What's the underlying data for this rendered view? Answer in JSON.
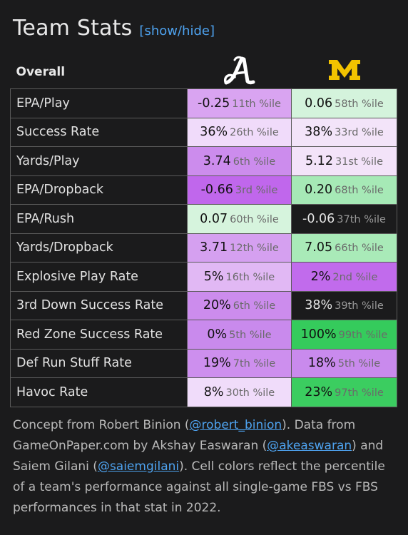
{
  "header": {
    "title": "Team Stats",
    "toggle_label": "[show/hide]"
  },
  "table": {
    "section_label": "Overall",
    "teams": [
      {
        "name": "Alabama",
        "logo_icon": "alabama-script-a-icon",
        "logo_color": "#ffffff"
      },
      {
        "name": "Michigan",
        "logo_icon": "michigan-block-m-icon",
        "logo_color": "#f2c300"
      }
    ],
    "rows": [
      {
        "stat": "EPA/Play",
        "cells": [
          {
            "value": "-0.25",
            "pct": "11th %ile",
            "color": "#d9a4f1",
            "dark": false
          },
          {
            "value": "0.06",
            "pct": "58th %ile",
            "color": "#d4f3dc",
            "dark": false
          }
        ]
      },
      {
        "stat": "Success Rate",
        "cells": [
          {
            "value": "36%",
            "pct": "26th %ile",
            "color": "#f0dbfa",
            "dark": false
          },
          {
            "value": "38%",
            "pct": "33rd %ile",
            "color": "#f3e4f9",
            "dark": false
          }
        ]
      },
      {
        "stat": "Yards/Play",
        "cells": [
          {
            "value": "3.74",
            "pct": "6th %ile",
            "color": "#cc8ced",
            "dark": false
          },
          {
            "value": "5.12",
            "pct": "31st %ile",
            "color": "#f3e3f9",
            "dark": false
          }
        ]
      },
      {
        "stat": "EPA/Dropback",
        "cells": [
          {
            "value": "-0.66",
            "pct": "3rd %ile",
            "color": "#c067ec",
            "dark": false
          },
          {
            "value": "0.20",
            "pct": "68th %ile",
            "color": "#a6e9b6",
            "dark": false
          }
        ]
      },
      {
        "stat": "EPA/Rush",
        "cells": [
          {
            "value": "0.07",
            "pct": "60th %ile",
            "color": "#d6f4dd",
            "dark": false
          },
          {
            "value": "-0.06",
            "pct": "37th %ile",
            "color": "#1b1b1c",
            "dark": true
          }
        ]
      },
      {
        "stat": "Yards/Dropback",
        "cells": [
          {
            "value": "3.71",
            "pct": "12th %ile",
            "color": "#d5a0f0",
            "dark": false
          },
          {
            "value": "7.05",
            "pct": "66th %ile",
            "color": "#a9eab8",
            "dark": false
          }
        ]
      },
      {
        "stat": "Explosive Play Rate",
        "cells": [
          {
            "value": "5%",
            "pct": "16th %ile",
            "color": "#e1b8f4",
            "dark": false
          },
          {
            "value": "2%",
            "pct": "2nd %ile",
            "color": "#c16bec",
            "dark": false
          }
        ]
      },
      {
        "stat": "3rd Down Success Rate",
        "cells": [
          {
            "value": "20%",
            "pct": "6th %ile",
            "color": "#cc8ced",
            "dark": false
          },
          {
            "value": "38%",
            "pct": "39th %ile",
            "color": "#1b1b1c",
            "dark": true
          }
        ]
      },
      {
        "stat": "Red Zone Success Rate",
        "cells": [
          {
            "value": "0%",
            "pct": "5th %ile",
            "color": "#c98aed",
            "dark": false
          },
          {
            "value": "100%",
            "pct": "99th %ile",
            "color": "#35cb5c",
            "dark": false
          }
        ]
      },
      {
        "stat": "Def Run Stuff Rate",
        "cells": [
          {
            "value": "19%",
            "pct": "7th %ile",
            "color": "#cd8fee",
            "dark": false
          },
          {
            "value": "18%",
            "pct": "5th %ile",
            "color": "#c98aed",
            "dark": false
          }
        ]
      },
      {
        "stat": "Havoc Rate",
        "cells": [
          {
            "value": "8%",
            "pct": "30th %ile",
            "color": "#f0dcfa",
            "dark": false
          },
          {
            "value": "23%",
            "pct": "97th %ile",
            "color": "#3bcd60",
            "dark": false
          }
        ]
      }
    ]
  },
  "footer": {
    "t1": "Concept from Robert Binion (",
    "l1": "@robert_binion",
    "t2": "). Data from GameOnPaper.com by Akshay Easwaran (",
    "l2": "@akeaswaran",
    "t3": ") and Saiem Gilani (",
    "l3": "@saiemgilani",
    "t4": "). Cell colors reflect the percentile of a team's performance against all single-game FBS vs FBS performances in that stat in 2022."
  }
}
